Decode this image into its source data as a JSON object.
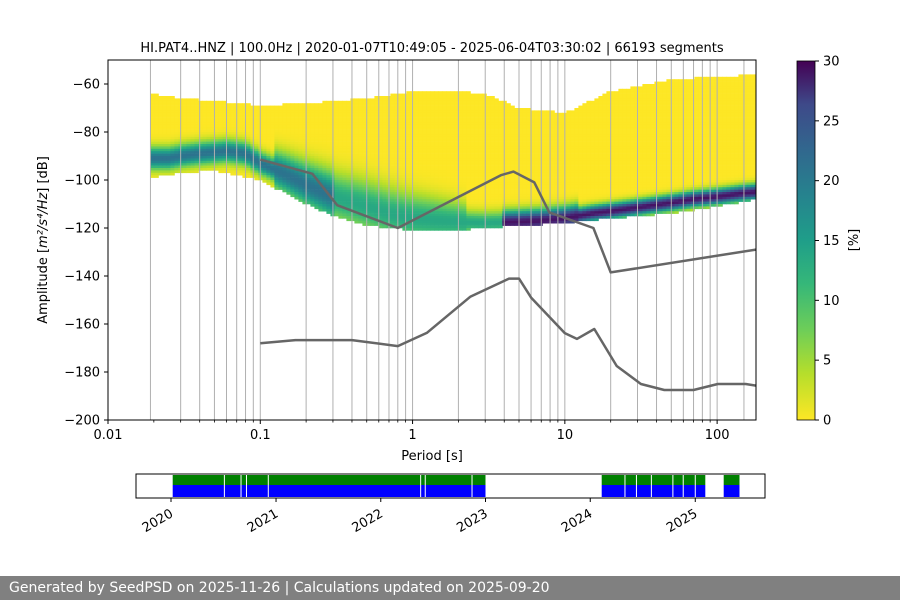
{
  "chart_data": [
    {
      "type": "heatmap",
      "title": "HI.PAT4..HNZ | 100.0Hz | 2020-01-07T10:49:05 - 2025-06-04T03:30:02 | 66193 segments",
      "xlabel": "Period [s]",
      "ylabel_prefix": "Amplitude [",
      "ylabel_unit": "m²/s⁴/Hz",
      "ylabel_suffix": "] [dB]",
      "xscale": "log",
      "xlim": [
        0.01,
        180
      ],
      "ylim": [
        -200,
        -50
      ],
      "xticks": [
        0.01,
        0.1,
        1,
        10,
        100
      ],
      "xtick_labels": [
        "0.01",
        "0.1",
        "1",
        "10",
        "100"
      ],
      "yticks": [
        -60,
        -80,
        -100,
        -120,
        -140,
        -160,
        -180,
        -200
      ],
      "ytick_labels": [
        "−60",
        "−80",
        "−100",
        "−120",
        "−140",
        "−160",
        "−180",
        "−200"
      ],
      "grid": "vertical",
      "colorbar": {
        "label": "[%]",
        "range": [
          0,
          30
        ],
        "ticks": [
          0,
          5,
          10,
          15,
          20,
          25,
          30
        ],
        "tick_labels": [
          "0",
          "5",
          "10",
          "15",
          "20",
          "25",
          "30"
        ],
        "colormap": "viridis"
      },
      "pdf_mode": [
        [
          0.019,
          -91
        ],
        [
          0.025,
          -91
        ],
        [
          0.03,
          -90
        ],
        [
          0.04,
          -89
        ],
        [
          0.06,
          -88
        ],
        [
          0.08,
          -89
        ],
        [
          0.1,
          -93
        ],
        [
          0.15,
          -98
        ],
        [
          0.2,
          -102
        ],
        [
          0.3,
          -107
        ],
        [
          0.5,
          -111
        ],
        [
          0.7,
          -114
        ],
        [
          1,
          -116
        ],
        [
          1.5,
          -117
        ],
        [
          2,
          -117.5
        ],
        [
          3,
          -118
        ],
        [
          5,
          -117.5
        ],
        [
          7,
          -117
        ],
        [
          10,
          -116
        ],
        [
          15,
          -114
        ],
        [
          20,
          -113
        ],
        [
          30,
          -111.5
        ],
        [
          50,
          -109.5
        ],
        [
          70,
          -108
        ],
        [
          100,
          -107
        ],
        [
          150,
          -105.5
        ],
        [
          180,
          -105
        ]
      ],
      "pdf_upper": [
        [
          0.019,
          -64
        ],
        [
          0.03,
          -66
        ],
        [
          0.05,
          -67
        ],
        [
          0.1,
          -69
        ],
        [
          0.2,
          -68
        ],
        [
          0.5,
          -66
        ],
        [
          1,
          -63
        ],
        [
          2,
          -63
        ],
        [
          3,
          -64
        ],
        [
          5,
          -70
        ],
        [
          10,
          -72
        ],
        [
          20,
          -63
        ],
        [
          50,
          -58
        ],
        [
          100,
          -57
        ],
        [
          180,
          -56
        ]
      ],
      "pdf_lower": [
        [
          0.019,
          -99
        ],
        [
          0.03,
          -97
        ],
        [
          0.05,
          -96
        ],
        [
          0.1,
          -100
        ],
        [
          0.2,
          -110
        ],
        [
          0.3,
          -115
        ],
        [
          0.5,
          -119
        ],
        [
          1,
          -121
        ],
        [
          2,
          -121
        ],
        [
          3,
          -120
        ],
        [
          5,
          -119
        ],
        [
          10,
          -118
        ],
        [
          20,
          -116
        ],
        [
          50,
          -114
        ],
        [
          100,
          -111
        ],
        [
          180,
          -108
        ]
      ],
      "nhnm": [
        [
          0.1,
          -91.5
        ],
        [
          0.22,
          -97.4
        ],
        [
          0.32,
          -110.5
        ],
        [
          0.8,
          -120
        ],
        [
          3.8,
          -98
        ],
        [
          4.6,
          -96.5
        ],
        [
          6.3,
          -101
        ],
        [
          7.9,
          -113.5
        ],
        [
          15.4,
          -120
        ],
        [
          20,
          -138.5
        ],
        [
          180,
          -129
        ]
      ],
      "nlnm": [
        [
          0.1,
          -168
        ],
        [
          0.17,
          -166.7
        ],
        [
          0.4,
          -166.7
        ],
        [
          0.8,
          -169.2
        ],
        [
          1.24,
          -163.7
        ],
        [
          2.4,
          -148.6
        ],
        [
          4.3,
          -141.1
        ],
        [
          5,
          -141.1
        ],
        [
          6,
          -149
        ],
        [
          10,
          -163.8
        ],
        [
          12,
          -166.2
        ],
        [
          15.6,
          -162.1
        ],
        [
          21.9,
          -177.5
        ],
        [
          31.6,
          -185
        ],
        [
          45,
          -187.5
        ],
        [
          70,
          -187.5
        ],
        [
          101,
          -185
        ],
        [
          154,
          -185
        ],
        [
          180,
          -185.7
        ]
      ],
      "period_gridlines": [
        0.019,
        0.03,
        0.04,
        0.05,
        0.06,
        0.07,
        0.08,
        0.09,
        0.1,
        0.2,
        0.3,
        0.4,
        0.5,
        0.6,
        0.7,
        0.8,
        0.9,
        1,
        2,
        3,
        4,
        5,
        6,
        7,
        8,
        9,
        10,
        20,
        30,
        40,
        50,
        60,
        70,
        80,
        90,
        100,
        150
      ]
    },
    {
      "type": "timeline",
      "xticks": [
        "2020",
        "2021",
        "2022",
        "2023",
        "2024",
        "2025"
      ],
      "xlim": [
        "2019-09-01",
        "2025-09-01"
      ],
      "available": [
        [
          "2020-01-07",
          "2023-01-01"
        ],
        [
          "2024-02-10",
          "2025-02-05"
        ],
        [
          "2025-04-10",
          "2025-06-04"
        ]
      ],
      "gaps": [
        "2020-07-05",
        "2020-09-01",
        "2020-09-20",
        "2020-12-05",
        "2022-05-20",
        "2022-06-05",
        "2022-11-15",
        "2024-05-01",
        "2024-06-10",
        "2024-08-01",
        "2024-10-15",
        "2024-11-20",
        "2025-01-01"
      ],
      "colors": {
        "upper": "#008000",
        "lower": "#0000ff"
      }
    }
  ],
  "footer": {
    "text": "Generated by SeedPSD on 2025-11-26 | Calculations updated on 2025-09-20"
  }
}
